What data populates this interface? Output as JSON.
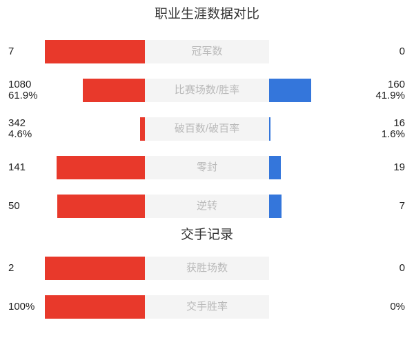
{
  "chart_data": {
    "type": "bar",
    "subtype": "bidirectional-comparison",
    "title": "职业生涯数据对比",
    "colors": {
      "left_bar": "#e8392b",
      "right_bar": "#3476db",
      "label_bg": "#f4f4f4",
      "label_text": "#b9b9b9",
      "value_text": "#1f1f1f",
      "title_text": "#333333"
    },
    "series": [
      {
        "name": "left-player",
        "color": "#e8392b"
      },
      {
        "name": "right-player",
        "color": "#3476db"
      }
    ],
    "sections": [
      {
        "title": "职业生涯数据对比",
        "rows": [
          {
            "label": "冠军数",
            "left_value": "7",
            "right_value": "0",
            "left_ratio": 1.0,
            "right_ratio": 0
          },
          {
            "label": "比赛场数/胜率",
            "left_value": "1080",
            "left_sub": "61.9%",
            "right_value": "160",
            "right_sub": "41.9%",
            "left_ratio": 0.619,
            "right_ratio": 0.419
          },
          {
            "label": "破百数/破百率",
            "left_value": "342",
            "left_sub": "4.6%",
            "right_value": "16",
            "right_sub": "1.6%",
            "left_ratio": 0.046,
            "right_ratio": 0.016
          },
          {
            "label": "零封",
            "left_value": "141",
            "right_value": "19",
            "left_ratio": 0.881,
            "right_ratio": 0.119
          },
          {
            "label": "逆转",
            "left_value": "50",
            "right_value": "7",
            "left_ratio": 0.877,
            "right_ratio": 0.123
          }
        ]
      },
      {
        "title": "交手记录",
        "rows": [
          {
            "label": "获胜场数",
            "left_value": "2",
            "right_value": "0",
            "left_ratio": 1.0,
            "right_ratio": 0
          },
          {
            "label": "交手胜率",
            "left_value": "100%",
            "right_value": "0%",
            "left_ratio": 1.0,
            "right_ratio": 0
          }
        ]
      }
    ]
  }
}
